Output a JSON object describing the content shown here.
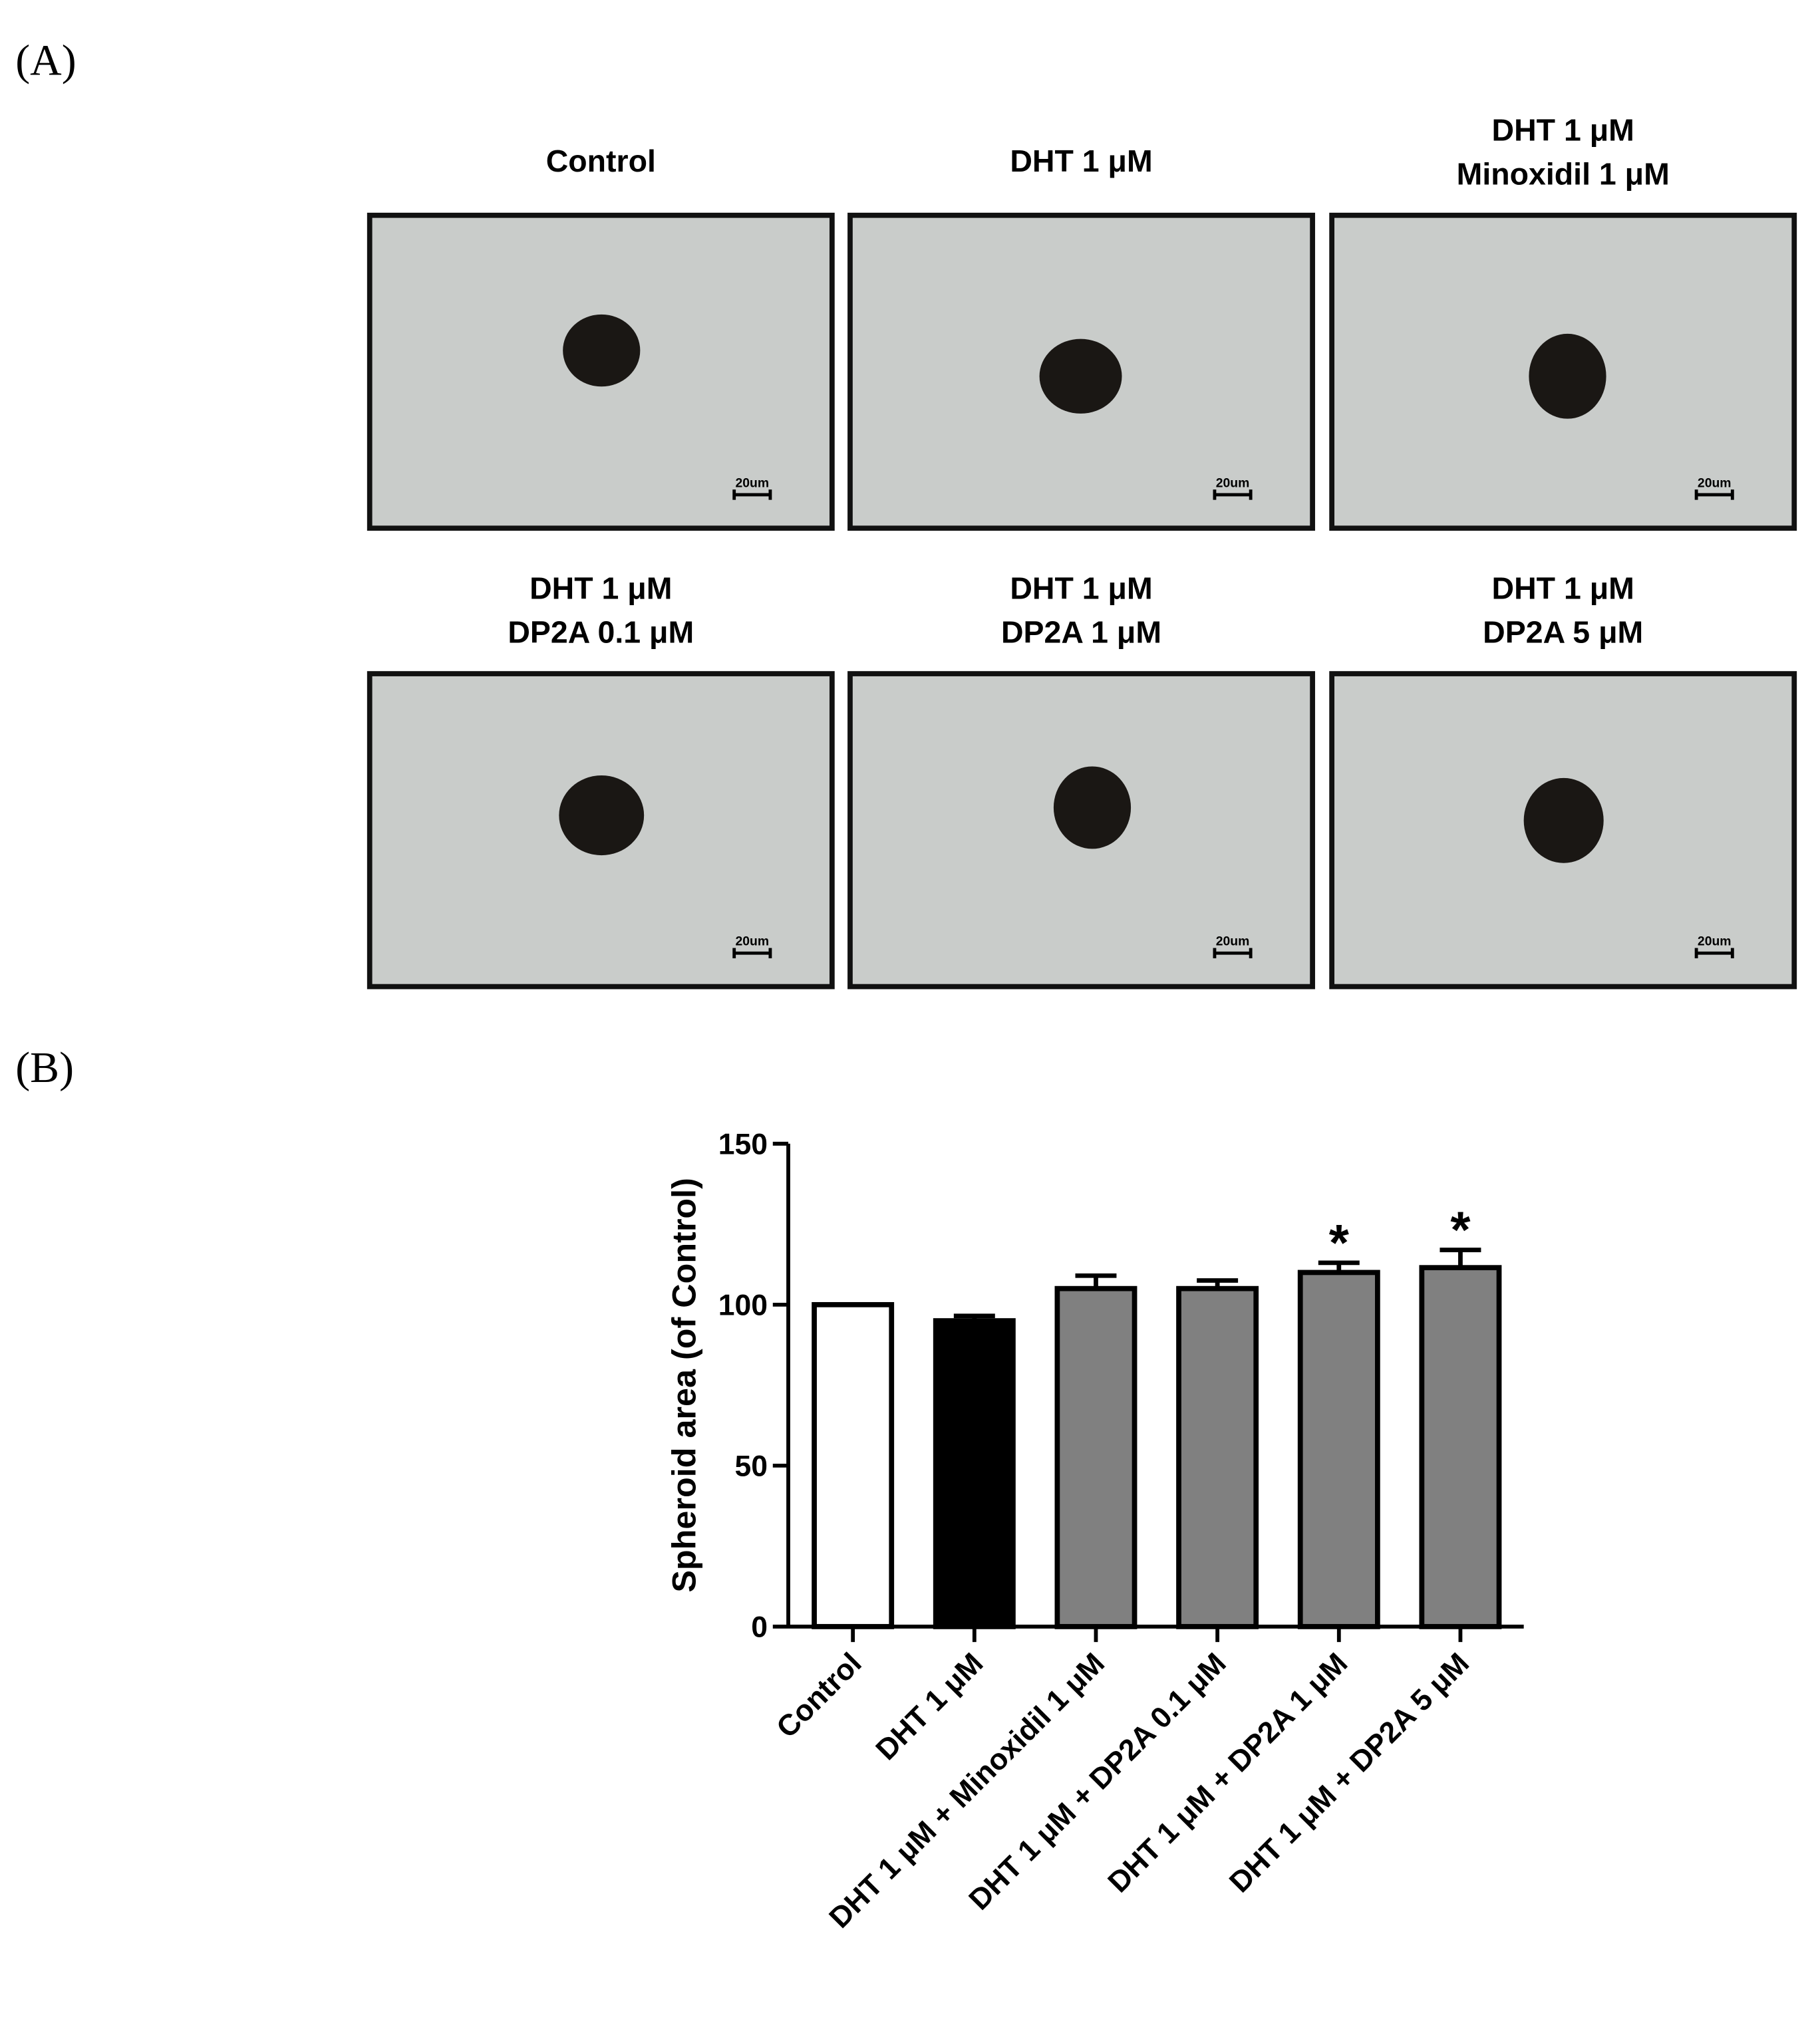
{
  "panel_labels": [
    "(A)",
    "(B)"
  ],
  "images": [
    {
      "caption": [
        "Control"
      ],
      "scale": "20um"
    },
    {
      "caption": [
        "DHT 1 μM"
      ],
      "scale": "20um"
    },
    {
      "caption": [
        "DHT 1 μM",
        "Minoxidil 1 μM"
      ],
      "scale": "20um"
    },
    {
      "caption": [
        "DHT 1 μM",
        "DP2A 0.1 μM"
      ],
      "scale": "20um"
    },
    {
      "caption": [
        "DHT 1 μM",
        "DP2A 1 μM"
      ],
      "scale": "20um"
    },
    {
      "caption": [
        "DHT 1 μM",
        "DP2A 5 μM"
      ],
      "scale": "20um"
    }
  ],
  "chart_data": {
    "type": "bar",
    "ylabel": "Spheroid area (of Control)",
    "categories": [
      "Control",
      "DHT 1 μM",
      "DHT 1 μM + Minoxidil 1 μM",
      "DHT 1 μM + DP2A 0.1 μM",
      "DHT 1 μM + DP2A 1 μM",
      "DHT 1 μM + DP2A 5 μM"
    ],
    "values": [
      100,
      95,
      105,
      105,
      110,
      111.5
    ],
    "errors": [
      0,
      1.5,
      4,
      2.5,
      3,
      5.5
    ],
    "colors": [
      "#ffffff",
      "#000000",
      "#808080",
      "#808080",
      "#808080",
      "#808080"
    ],
    "significance": [
      null,
      null,
      null,
      null,
      "*",
      "*"
    ],
    "ylim": [
      0,
      150
    ],
    "yticks": [
      0,
      50,
      100,
      150
    ]
  }
}
